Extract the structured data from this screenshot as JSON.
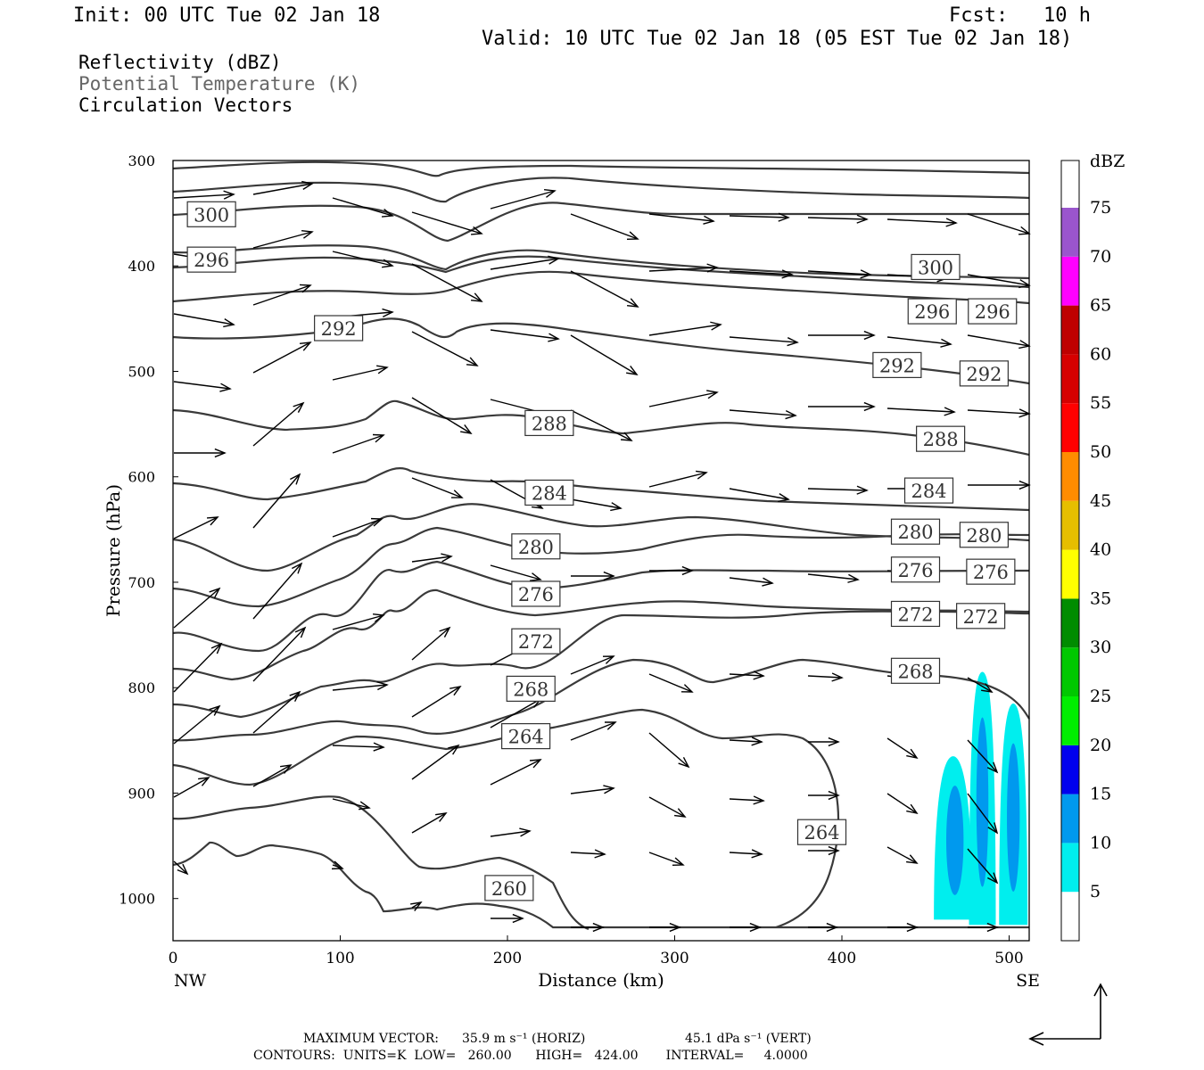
{
  "header": {
    "init": "Init: 00 UTC Tue 02 Jan 18",
    "fcst": "Fcst:   10 h",
    "valid": "Valid: 10 UTC Tue 02 Jan 18 (05 EST Tue 02 Jan 18)"
  },
  "fields": {
    "reflectivity": "Reflectivity (dBZ)",
    "theta": "Potential Temperature (K)",
    "vectors": "Circulation Vectors"
  },
  "footer": {
    "max_vector_label": "MAXIMUM VECTOR:",
    "horiz": "35.9 m s⁻¹ (HORIZ)",
    "vert": "45.1 dPa s⁻¹ (VERT)",
    "contours": "CONTOURS:  UNITS=K  LOW=   260.00      HIGH=   424.00       INTERVAL=     4.0000"
  },
  "colors": {
    "contour": "#3a3a3a",
    "theta_text": "#666666"
  },
  "chart_data": {
    "type": "contour",
    "xlabel": "Distance (km)",
    "ylabel": "Pressure (hPa)",
    "xlim": [
      0,
      512
    ],
    "ylim": [
      300,
      1040
    ],
    "x_ticks": [
      0,
      100,
      200,
      300,
      400,
      500
    ],
    "y_ticks": [
      300,
      400,
      500,
      600,
      700,
      800,
      900,
      1000
    ],
    "x_end_labels": [
      "NW",
      "SE"
    ],
    "colorbar": {
      "unit": "dBZ",
      "levels": [
        5,
        10,
        15,
        20,
        25,
        30,
        35,
        40,
        45,
        50,
        55,
        60,
        65,
        70,
        75
      ],
      "colors": [
        "#00eeee",
        "#0099ee",
        "#0000ee",
        "#00ee00",
        "#00c800",
        "#008c00",
        "#ffff00",
        "#e6be00",
        "#ff8c00",
        "#ff0000",
        "#d60000",
        "#be0000",
        "#ff00ff",
        "#9a55cd",
        "#ffffff"
      ]
    },
    "contour_levels": [
      {
        "level": "260",
        "x": 201,
        "p": 990
      },
      {
        "level": "264",
        "x": 211,
        "p": 846
      },
      {
        "level": "264",
        "x": 388,
        "p": 937
      },
      {
        "level": "268",
        "x": 214,
        "p": 801
      },
      {
        "level": "268",
        "x": 444,
        "p": 784
      },
      {
        "level": "272",
        "x": 217,
        "p": 756
      },
      {
        "level": "272",
        "x": 444,
        "p": 730
      },
      {
        "level": "272",
        "x": 483,
        "p": 732
      },
      {
        "level": "276",
        "x": 217,
        "p": 711
      },
      {
        "level": "276",
        "x": 444,
        "p": 688
      },
      {
        "level": "276",
        "x": 489,
        "p": 690
      },
      {
        "level": "280",
        "x": 217,
        "p": 666
      },
      {
        "level": "280",
        "x": 444,
        "p": 652
      },
      {
        "level": "280",
        "x": 485,
        "p": 655
      },
      {
        "level": "284",
        "x": 225,
        "p": 615
      },
      {
        "level": "284",
        "x": 452,
        "p": 613
      },
      {
        "level": "288",
        "x": 225,
        "p": 549
      },
      {
        "level": "288",
        "x": 459,
        "p": 564
      },
      {
        "level": "292",
        "x": 99,
        "p": 459
      },
      {
        "level": "292",
        "x": 433,
        "p": 494
      },
      {
        "level": "292",
        "x": 485,
        "p": 502
      },
      {
        "level": "296",
        "x": 23,
        "p": 394
      },
      {
        "level": "296",
        "x": 454,
        "p": 443
      },
      {
        "level": "296",
        "x": 490,
        "p": 443
      },
      {
        "level": "300",
        "x": 23,
        "p": 351
      },
      {
        "level": "300",
        "x": 456,
        "p": 401
      }
    ],
    "reflectivity_cells": [
      {
        "x_min": 455,
        "x_max": 478,
        "p_top": 865,
        "p_bottom": 1020,
        "max_dbz": 10
      },
      {
        "x_min": 476,
        "x_max": 492,
        "p_top": 785,
        "p_bottom": 1025,
        "max_dbz": 10
      },
      {
        "x_min": 494,
        "x_max": 511,
        "p_top": 815,
        "p_bottom": 1025,
        "max_dbz": 10
      }
    ]
  }
}
